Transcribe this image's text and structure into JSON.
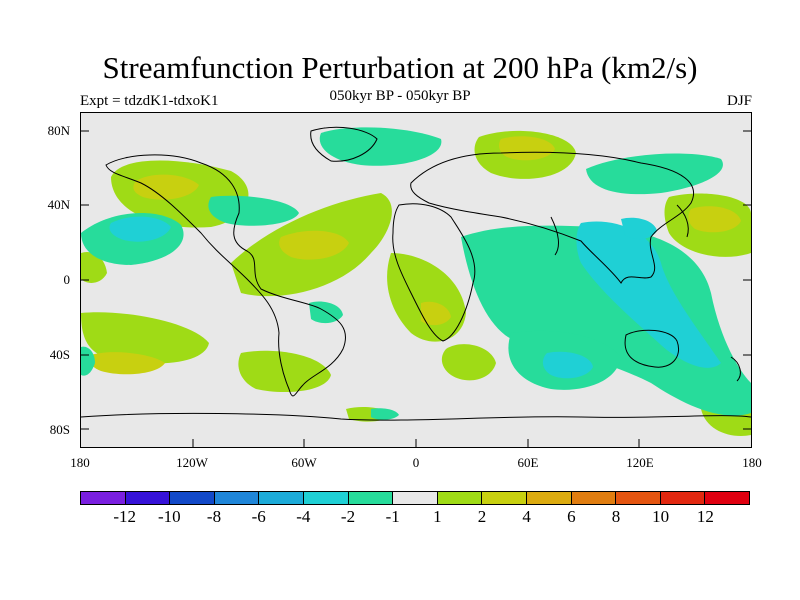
{
  "title": "Streamfunction Perturbation at 200 hPa (km2/s)",
  "subtitle": "050kyr BP - 050kyr BP",
  "experiment": "Expt = tdzdK1-tdxoK1",
  "season": "DJF",
  "lat_labels": [
    "80N",
    "40N",
    "0",
    "40S",
    "80S"
  ],
  "lon_labels": [
    "180",
    "120W",
    "60W",
    "0",
    "60E",
    "120E",
    "180"
  ],
  "colorbar": {
    "colors": [
      "#7a1fe0",
      "#3612d8",
      "#1249c8",
      "#1f86d9",
      "#1cabd9",
      "#1fd0d5",
      "#27dc9b",
      "#e8e8e8",
      "#9fdb16",
      "#c8d010",
      "#dcab10",
      "#e07d10",
      "#e45510",
      "#e22810",
      "#e00010"
    ],
    "labels": [
      "-12",
      "-10",
      "-8",
      "-6",
      "-4",
      "-2",
      "-1",
      "1",
      "2",
      "4",
      "6",
      "8",
      "10",
      "12"
    ]
  },
  "colors": {
    "neutral": "#e8e8e8",
    "neg1": "#27dc9b",
    "neg2": "#1fd0d5",
    "pos1": "#9fdb16",
    "pos2": "#c8d010"
  }
}
